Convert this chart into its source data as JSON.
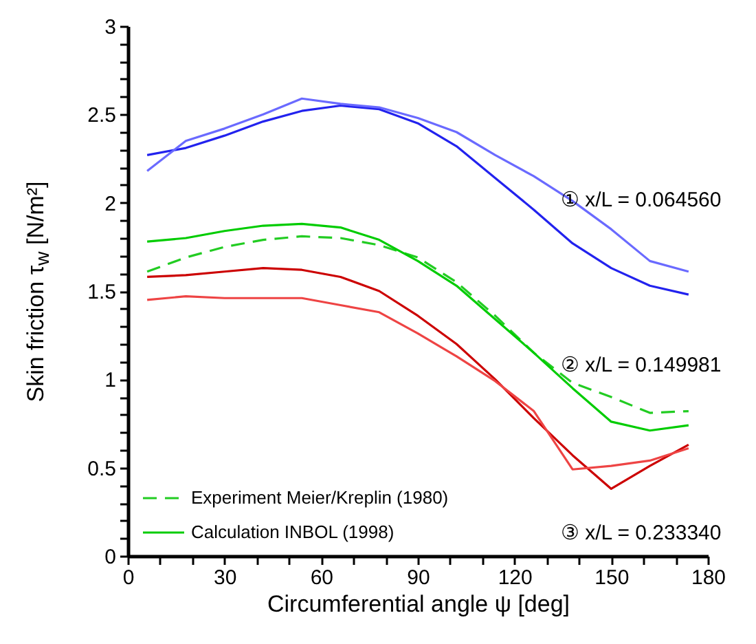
{
  "chart_data": {
    "type": "line",
    "xlabel": "Circumferential angle ψ [deg]",
    "ylabel": "Skin friction  τ$_{w}$ [N/m²]",
    "x": [
      6,
      18,
      30,
      42,
      54,
      66,
      78,
      90,
      102,
      114,
      126,
      138,
      150,
      162,
      174
    ],
    "xlim": [
      0,
      180
    ],
    "xticks": [
      0,
      {
        "value": 10,
        "label": null
      },
      {
        "value": 20,
        "label": null
      },
      30,
      {
        "value": 40,
        "label": null
      },
      {
        "value": 50,
        "label": null
      },
      60,
      {
        "value": 70,
        "label": null
      },
      {
        "value": 80,
        "label": null
      },
      90,
      {
        "value": 100,
        "label": null
      },
      {
        "value": 110,
        "label": null
      },
      120,
      {
        "value": 130,
        "label": null
      },
      {
        "value": 140,
        "label": null
      },
      150,
      {
        "value": 160,
        "label": null
      },
      {
        "value": 170,
        "label": null
      },
      180
    ],
    "ylim": [
      0,
      3
    ],
    "yticks": [
      0,
      {
        "value": 0.1,
        "label": null
      },
      {
        "value": 0.2,
        "label": null
      },
      {
        "value": 0.3,
        "label": null
      },
      {
        "value": 0.4,
        "label": null
      },
      0.5,
      {
        "value": 0.6,
        "label": null
      },
      {
        "value": 0.7,
        "label": null
      },
      {
        "value": 0.8,
        "label": null
      },
      {
        "value": 0.9,
        "label": null
      },
      1,
      {
        "value": 1.1,
        "label": null
      },
      {
        "value": 1.2,
        "label": null
      },
      {
        "value": 1.3,
        "label": null
      },
      {
        "value": 1.4,
        "label": null
      },
      1.5,
      {
        "value": 1.6,
        "label": null
      },
      {
        "value": 1.7,
        "label": null
      },
      {
        "value": 1.8,
        "label": null
      },
      {
        "value": 1.9,
        "label": null
      },
      2,
      {
        "value": 2.1,
        "label": null
      },
      {
        "value": 2.2,
        "label": null
      },
      {
        "value": 2.3,
        "label": null
      },
      {
        "value": 2.4,
        "label": null
      },
      2.5,
      {
        "value": 2.6,
        "label": null
      },
      {
        "value": 2.7,
        "label": null
      },
      {
        "value": 2.8,
        "label": null
      },
      {
        "value": 2.9,
        "label": null
      },
      3
    ],
    "grid": false,
    "legend": "bottom left",
    "line_style": "solid",
    "series": [
      {
        "name": "Experiment Meier/Kreplin (1980)",
        "color": "#22cc22",
        "line_style": "dashed",
        "values": [
          1.61,
          1.69,
          1.75,
          1.79,
          1.81,
          1.8,
          1.76,
          1.69,
          1.55,
          1.36,
          1.15,
          0.98,
          0.9,
          0.81,
          0.82
        ]
      },
      {
        "name": "Calculation INBOL (1998)",
        "color": "#00cc00",
        "values": [
          1.78,
          1.8,
          1.84,
          1.87,
          1.88,
          1.86,
          1.79,
          1.67,
          1.53,
          1.34,
          1.15,
          0.95,
          0.76,
          0.71,
          0.74
        ]
      },
      {
        "color": "#2222ee",
        "values": [
          2.27,
          2.31,
          2.38,
          2.46,
          2.52,
          2.55,
          2.53,
          2.45,
          2.32,
          2.14,
          1.96,
          1.77,
          1.63,
          1.53,
          1.48
        ]
      },
      {
        "color": "#6a6aff",
        "values": [
          2.18,
          2.35,
          2.42,
          2.5,
          2.59,
          2.56,
          2.54,
          2.48,
          2.4,
          2.27,
          2.15,
          2.01,
          1.85,
          1.67,
          1.61
        ]
      },
      {
        "color": "#cc0000",
        "values": [
          1.58,
          1.59,
          1.61,
          1.63,
          1.62,
          1.58,
          1.5,
          1.36,
          1.2,
          1.0,
          0.78,
          0.57,
          0.38,
          0.51,
          0.63
        ]
      },
      {
        "color": "#ee4444",
        "values": [
          1.45,
          1.47,
          1.46,
          1.46,
          1.46,
          1.42,
          1.38,
          1.26,
          1.13,
          0.99,
          0.82,
          0.49,
          0.51,
          0.54,
          0.61
        ]
      }
    ],
    "annotations": [
      "① x/L = 0.064560",
      "② x/L = 0.149981",
      "③ x/L = 0.233340"
    ]
  }
}
